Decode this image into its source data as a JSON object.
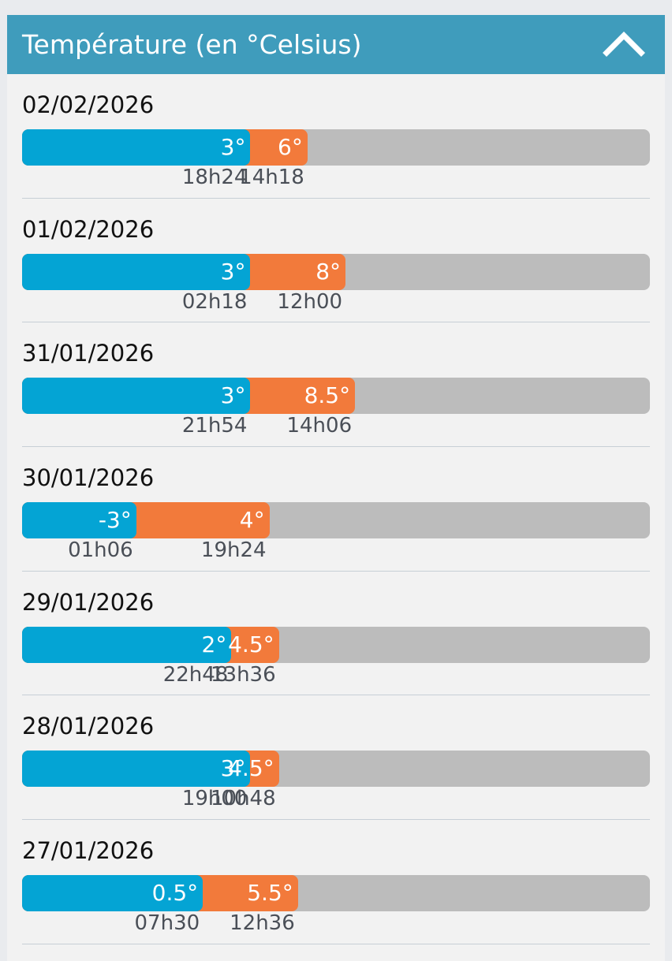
{
  "panel": {
    "title": "Température (en °Celsius)",
    "collapse_icon": "chevron-up-icon"
  },
  "colors": {
    "header": "#3f9cbc",
    "min_bar": "#04a4d4",
    "max_bar": "#f27a3b",
    "track": "#bcbcbc"
  },
  "scale": {
    "min_temp": -9,
    "max_temp": 24
  },
  "days": [
    {
      "date": "02/02/2026",
      "min": 3,
      "min_label": "3°",
      "min_time": "18h24",
      "max": 6,
      "max_label": "6°",
      "max_time": "14h18"
    },
    {
      "date": "01/02/2026",
      "min": 3,
      "min_label": "3°",
      "min_time": "02h18",
      "max": 8,
      "max_label": "8°",
      "max_time": "12h00"
    },
    {
      "date": "31/01/2026",
      "min": 3,
      "min_label": "3°",
      "min_time": "21h54",
      "max": 8.5,
      "max_label": "8.5°",
      "max_time": "14h06"
    },
    {
      "date": "30/01/2026",
      "min": -3,
      "min_label": "-3°",
      "min_time": "01h06",
      "max": 4,
      "max_label": "4°",
      "max_time": "19h24"
    },
    {
      "date": "29/01/2026",
      "min": 2,
      "min_label": "2°",
      "min_time": "22h48",
      "max": 4.5,
      "max_label": "4.5°",
      "max_time": "13h36"
    },
    {
      "date": "28/01/2026",
      "min": 3,
      "min_label": "3°",
      "min_time": "19h00",
      "max": 4.5,
      "max_label": "4.5°",
      "max_time": "10h48"
    },
    {
      "date": "27/01/2026",
      "min": 0.5,
      "min_label": "0.5°",
      "min_time": "07h30",
      "max": 5.5,
      "max_label": "5.5°",
      "max_time": "12h36"
    }
  ]
}
